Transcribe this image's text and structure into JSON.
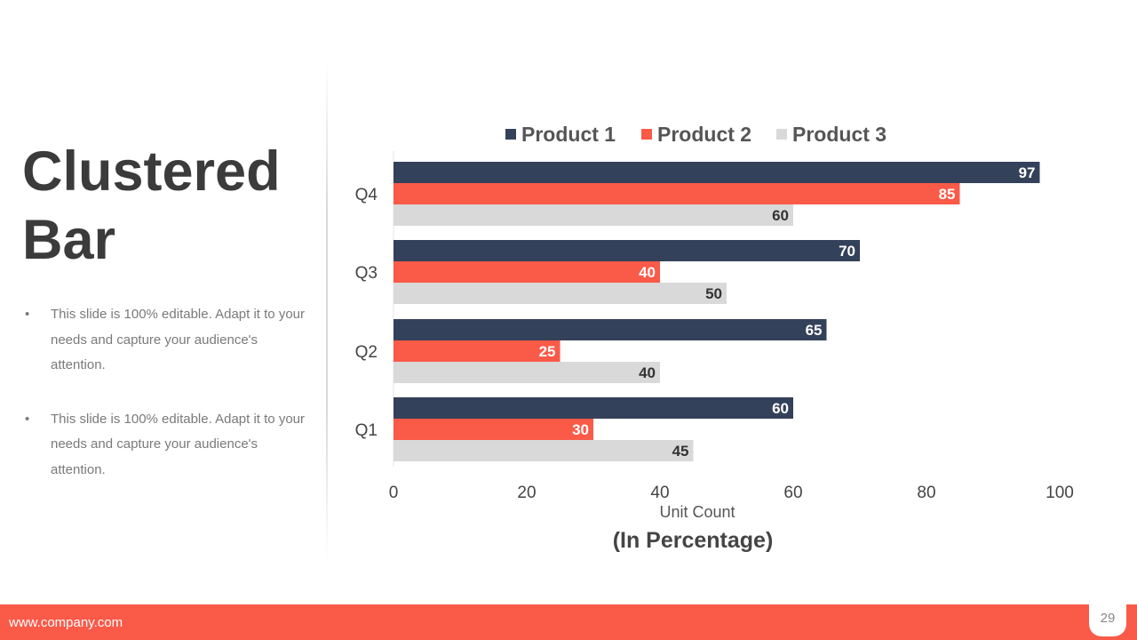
{
  "slide": {
    "title_line1": "Clustered",
    "title_line2": "Bar",
    "bullets": [
      "This slide is 100% editable. Adapt it to your needs and capture your audience's attention.",
      "This slide is 100% editable. Adapt it to your needs and capture your audience's attention."
    ],
    "footer_url": "www.company.com",
    "page_number": "29"
  },
  "chart_data": {
    "type": "bar",
    "orientation": "horizontal",
    "categories": [
      "Q1",
      "Q2",
      "Q3",
      "Q4"
    ],
    "series": [
      {
        "name": "Product 1",
        "color": "#34415a",
        "values": [
          60,
          65,
          70,
          97
        ]
      },
      {
        "name": "Product 2",
        "color": "#fa5a48",
        "values": [
          30,
          25,
          40,
          85
        ]
      },
      {
        "name": "Product 3",
        "color": "#d9d9d9",
        "values": [
          45,
          40,
          50,
          60
        ]
      }
    ],
    "xlim": [
      0,
      100
    ],
    "xticks": [
      0,
      20,
      40,
      60,
      80,
      100
    ],
    "xlabel": "Unit Count",
    "subtitle": "(In Percentage)",
    "legend": "top",
    "grid": false,
    "data_labels": true
  }
}
